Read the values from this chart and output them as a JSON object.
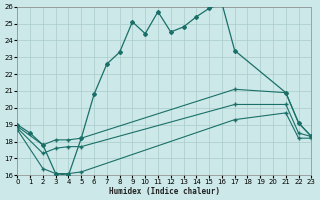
{
  "xlabel": "Humidex (Indice chaleur)",
  "background_color": "#cce8e8",
  "grid_color": "#aacccc",
  "line_color": "#1a7068",
  "xlim": [
    0,
    23
  ],
  "ylim": [
    16,
    26
  ],
  "xticks": [
    0,
    1,
    2,
    3,
    4,
    5,
    6,
    7,
    8,
    9,
    10,
    11,
    12,
    13,
    14,
    15,
    16,
    17,
    18,
    19,
    20,
    21,
    22,
    23
  ],
  "yticks": [
    16,
    17,
    18,
    19,
    20,
    21,
    22,
    23,
    24,
    25,
    26
  ],
  "curve1_x": [
    0,
    1,
    2,
    3,
    4,
    5,
    6,
    7,
    8,
    9,
    10,
    11,
    12,
    13,
    14,
    15,
    16,
    17,
    21,
    22,
    23
  ],
  "curve1_y": [
    19.0,
    18.5,
    17.8,
    16.1,
    16.0,
    18.2,
    20.8,
    22.6,
    23.3,
    25.1,
    24.4,
    25.7,
    24.5,
    24.8,
    25.4,
    25.9,
    26.2,
    23.4,
    20.9,
    19.1,
    18.3
  ],
  "curve2_x": [
    0,
    2,
    3,
    4,
    5,
    17,
    21,
    22,
    23
  ],
  "curve2_y": [
    18.9,
    17.8,
    18.1,
    18.1,
    18.2,
    21.1,
    20.9,
    19.1,
    18.3
  ],
  "curve3_x": [
    0,
    2,
    3,
    4,
    5,
    17,
    21,
    22,
    23
  ],
  "curve3_y": [
    18.8,
    17.3,
    17.6,
    17.7,
    17.7,
    20.2,
    20.2,
    18.5,
    18.3
  ],
  "curve4_x": [
    0,
    2,
    3,
    4,
    5,
    17,
    21,
    22,
    23
  ],
  "curve4_y": [
    18.7,
    16.4,
    16.1,
    16.1,
    16.2,
    19.3,
    19.7,
    18.2,
    18.2
  ]
}
